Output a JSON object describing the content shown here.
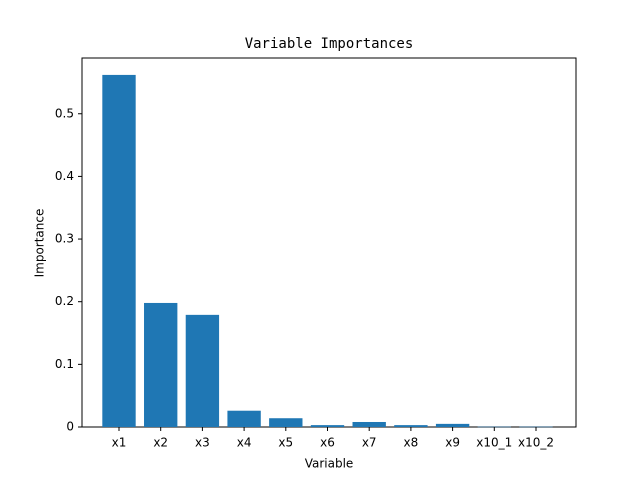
{
  "chart_data": {
    "type": "bar",
    "title": "Variable Importances",
    "x_label": "Variable",
    "y_label": "Importance",
    "categories": [
      "x1",
      "x2",
      "x3",
      "x4",
      "x5",
      "x6",
      "x7",
      "x8",
      "x9",
      "x10_1",
      "x10_2"
    ],
    "values": [
      0.562,
      0.198,
      0.179,
      0.026,
      0.014,
      0.003,
      0.008,
      0.003,
      0.005,
      0.0005,
      0.0005
    ],
    "color": "#1f77b4",
    "ylim": [
      0,
      0.589
    ],
    "yticks": [
      0.0,
      0.1,
      0.2,
      0.3,
      0.4,
      0.5
    ],
    "grid": false
  }
}
